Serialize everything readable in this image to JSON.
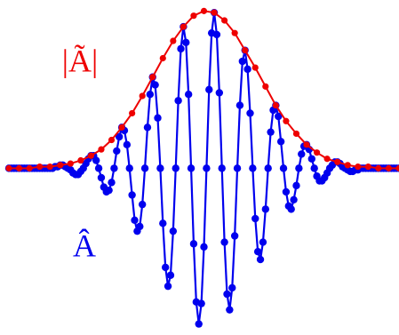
{
  "chart_data": {
    "type": "line",
    "markers": true,
    "annotations": [
      "|Ã|",
      "Â"
    ],
    "xlim": [
      -3.85,
      3.75
    ],
    "ylim": [
      -1.06,
      1.07
    ],
    "series": [
      {
        "name": "Â",
        "color": "#0000ee",
        "x": [
          -3.85,
          -3.8,
          -3.75,
          -3.7,
          -3.65,
          -3.6,
          -3.55,
          -3.5,
          -3.45,
          -3.4,
          -3.35,
          -3.3,
          -3.25,
          -3.2,
          -3.15,
          -3.1,
          -3.05,
          -3.0,
          -2.95,
          -2.9,
          -2.85,
          -2.8,
          -2.75,
          -2.7,
          -2.65,
          -2.6,
          -2.55,
          -2.5,
          -2.45,
          -2.4,
          -2.35,
          -2.3,
          -2.25,
          -2.2,
          -2.15,
          -2.1,
          -2.05,
          -2.0,
          -1.95,
          -1.9,
          -1.85,
          -1.8,
          -1.75,
          -1.7,
          -1.65,
          -1.6,
          -1.55,
          -1.5,
          -1.45,
          -1.4,
          -1.35,
          -1.3,
          -1.25,
          -1.2,
          -1.15,
          -1.1,
          -1.05,
          -1.0,
          -0.95,
          -0.9,
          -0.85,
          -0.8,
          -0.75,
          -0.7,
          -0.65,
          -0.6,
          -0.55,
          -0.5,
          -0.45,
          -0.4,
          -0.35,
          -0.3,
          -0.25,
          -0.2,
          -0.15,
          -0.1,
          -0.05,
          0,
          0.05,
          0.1,
          0.15,
          0.2,
          0.25,
          0.3,
          0.35,
          0.4,
          0.45,
          0.5,
          0.55,
          0.6,
          0.65,
          0.7,
          0.75,
          0.8,
          0.85,
          0.9,
          0.95,
          1.0,
          1.05,
          1.1,
          1.15,
          1.2,
          1.25,
          1.3,
          1.35,
          1.4,
          1.45,
          1.5,
          1.55,
          1.6,
          1.65,
          1.7,
          1.75,
          1.8,
          1.85,
          1.9,
          1.95,
          2.0,
          2.05,
          2.1,
          2.15,
          2.2,
          2.25,
          2.3,
          2.35,
          2.4,
          2.45,
          2.5,
          2.55,
          2.6,
          2.65,
          2.7,
          2.75,
          2.8,
          2.85,
          2.9,
          2.95,
          3.0,
          3.05,
          3.1,
          3.15,
          3.2,
          3.25,
          3.3,
          3.35,
          3.4,
          3.45,
          3.5,
          3.55,
          3.6,
          3.65,
          3.7,
          3.75
        ],
        "values": [
          0,
          0,
          0,
          0,
          0,
          0,
          0,
          0,
          0,
          0,
          0,
          0,
          0,
          0,
          0,
          0,
          0,
          0,
          0.01,
          0.01,
          0.02,
          0.02,
          0.01,
          0,
          -0.01,
          -0.03,
          -0.04,
          -0.04,
          -0.02,
          0,
          0.03,
          0.06,
          0.08,
          0.08,
          0.05,
          0,
          -0.06,
          -0.12,
          -0.15,
          -0.14,
          -0.09,
          0,
          0.11,
          0.2,
          0.26,
          0.24,
          0.15,
          0,
          -0.17,
          -0.33,
          -0.4,
          -0.37,
          -0.23,
          0,
          0.26,
          0.47,
          0.58,
          0.53,
          0.32,
          0,
          -0.35,
          -0.63,
          -0.75,
          -0.68,
          -0.4,
          0,
          0.43,
          0.76,
          0.9,
          0.8,
          0.47,
          0,
          -0.48,
          -0.85,
          -0.99,
          -0.86,
          -0.5,
          0,
          0.5,
          0.86,
          0.99,
          0.85,
          0.48,
          0,
          -0.47,
          -0.8,
          -0.9,
          -0.76,
          -0.43,
          0,
          0.4,
          0.68,
          0.75,
          0.63,
          0.35,
          0,
          -0.32,
          -0.53,
          -0.58,
          -0.47,
          -0.26,
          0,
          0.23,
          0.37,
          0.4,
          0.33,
          0.17,
          0,
          -0.15,
          -0.24,
          -0.26,
          -0.2,
          -0.11,
          0,
          0.09,
          0.14,
          0.15,
          0.12,
          0.06,
          0,
          -0.05,
          -0.08,
          -0.08,
          -0.06,
          -0.03,
          0,
          0.02,
          0.04,
          0.04,
          0.03,
          0.01,
          0,
          -0.01,
          -0.02,
          -0.02,
          -0.01,
          -0.01,
          0,
          0,
          0,
          0,
          0,
          0,
          0,
          0,
          0,
          0,
          0,
          0,
          0,
          0,
          0,
          0
        ]
      },
      {
        "name": "|Ã|",
        "color": "#ee0000",
        "x": [
          -3.85,
          -3.65,
          -3.45,
          -3.25,
          -3.05,
          -2.85,
          -2.65,
          -2.45,
          -2.25,
          -2.05,
          -1.85,
          -1.65,
          -1.45,
          -1.25,
          -1.05,
          -0.85,
          -0.65,
          -0.45,
          -0.25,
          -0.05,
          0.15,
          0.35,
          0.55,
          0.75,
          0.95,
          1.15,
          1.35,
          1.55,
          1.75,
          1.95,
          2.15,
          2.35,
          2.55,
          2.75,
          2.95,
          3.15,
          3.35,
          3.55,
          3.75
        ],
        "values": [
          0,
          0,
          0,
          0.01,
          0.01,
          0.02,
          0.03,
          0.05,
          0.08,
          0.12,
          0.18,
          0.26,
          0.35,
          0.46,
          0.58,
          0.7,
          0.81,
          0.9,
          0.97,
          1.0,
          0.99,
          0.94,
          0.86,
          0.75,
          0.64,
          0.52,
          0.4,
          0.3,
          0.22,
          0.15,
          0.1,
          0.06,
          0.04,
          0.02,
          0.01,
          0.01,
          0,
          0,
          0
        ]
      }
    ]
  }
}
